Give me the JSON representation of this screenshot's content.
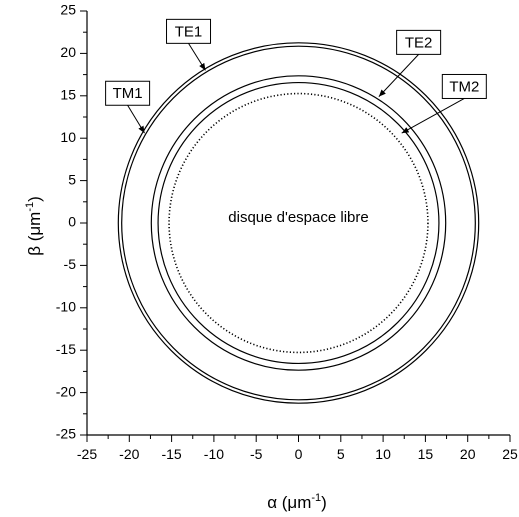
{
  "chart_data": {
    "type": "scatter",
    "title": "",
    "xlabel": {
      "text": "α (μm",
      "sup": "-1",
      "tail": ")"
    },
    "ylabel": {
      "text": "β (μm",
      "sup": "-1",
      "tail": ")"
    },
    "xlim": [
      -25,
      25
    ],
    "ylim": [
      -25,
      25
    ],
    "x_ticks": [
      "-25",
      "-20",
      "-15",
      "-10",
      "-5",
      "0",
      "5",
      "10",
      "15",
      "20",
      "25"
    ],
    "y_ticks": [
      "25",
      "20",
      "15",
      "10",
      "5",
      "0",
      "-5",
      "-10",
      "-15",
      "-20",
      "-25"
    ],
    "grid": false,
    "series": [
      {
        "name": "TE1",
        "shape": "circle",
        "radius": 21.3,
        "style": "solid"
      },
      {
        "name": "TM1",
        "shape": "circle",
        "radius": 20.9,
        "style": "solid"
      },
      {
        "name": "TE2",
        "shape": "circle",
        "radius": 17.4,
        "style": "solid"
      },
      {
        "name": "TM2",
        "shape": "circle",
        "radius": 16.6,
        "style": "solid"
      },
      {
        "name": "",
        "shape": "circle",
        "radius": 15.3,
        "style": "dotted"
      }
    ],
    "annotations": [
      {
        "text": "disque d'espace libre",
        "x": 0,
        "y": 0.6
      }
    ],
    "callouts": [
      {
        "label": "TE1",
        "box_xy": [
          -13.0,
          22.6
        ],
        "arrow_to": [
          -11.0,
          18.0
        ]
      },
      {
        "label": "TM1",
        "box_xy": [
          -20.2,
          15.3
        ],
        "arrow_to": [
          -18.2,
          10.6
        ]
      },
      {
        "label": "TE2",
        "box_xy": [
          14.2,
          21.3
        ],
        "arrow_to": [
          9.5,
          14.9
        ]
      },
      {
        "label": "TM2",
        "box_xy": [
          19.6,
          16.1
        ],
        "arrow_to": [
          12.2,
          10.6
        ]
      }
    ]
  }
}
